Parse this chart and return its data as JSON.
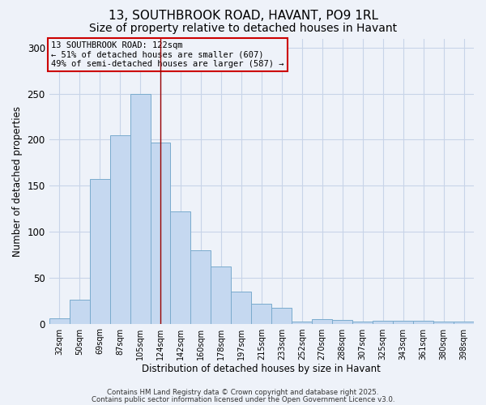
{
  "title1": "13, SOUTHBROOK ROAD, HAVANT, PO9 1RL",
  "title2": "Size of property relative to detached houses in Havant",
  "xlabel": "Distribution of detached houses by size in Havant",
  "ylabel": "Number of detached properties",
  "categories": [
    "32sqm",
    "50sqm",
    "69sqm",
    "87sqm",
    "105sqm",
    "124sqm",
    "142sqm",
    "160sqm",
    "178sqm",
    "197sqm",
    "215sqm",
    "233sqm",
    "252sqm",
    "270sqm",
    "288sqm",
    "307sqm",
    "325sqm",
    "343sqm",
    "361sqm",
    "380sqm",
    "398sqm"
  ],
  "values": [
    6,
    26,
    157,
    205,
    250,
    197,
    122,
    80,
    62,
    35,
    22,
    17,
    2,
    5,
    4,
    2,
    3,
    3,
    3,
    2,
    2
  ],
  "bar_color": "#c5d8f0",
  "bar_edge_color": "#7aabcd",
  "grid_color": "#c8d4e8",
  "bg_color": "#eef2f9",
  "ref_line_x": 5,
  "ref_line_color": "#990000",
  "annotation_text": "13 SOUTHBROOK ROAD: 122sqm\n← 51% of detached houses are smaller (607)\n49% of semi-detached houses are larger (587) →",
  "annotation_box_color": "#cc0000",
  "footer1": "Contains HM Land Registry data © Crown copyright and database right 2025.",
  "footer2": "Contains public sector information licensed under the Open Government Licence v3.0.",
  "ylim": [
    0,
    310
  ],
  "title_fontsize": 11,
  "subtitle_fontsize": 10
}
